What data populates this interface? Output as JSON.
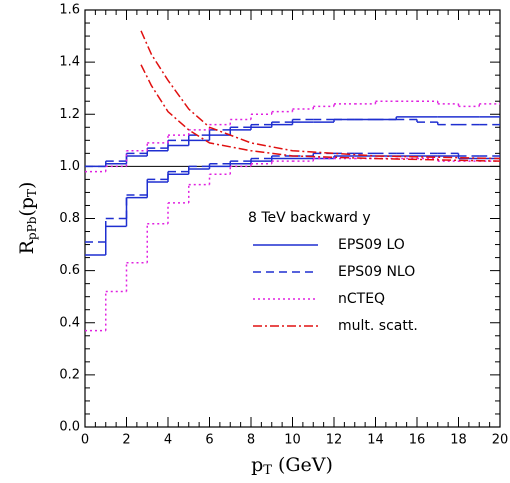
{
  "chart_data": {
    "type": "step",
    "xlabel": {
      "main": "p",
      "sub": "T",
      "rest": " (GeV)"
    },
    "ylabel": {
      "main": "R",
      "sub": "pPb",
      "rest": "(p",
      "sub2": "T",
      "end": ")"
    },
    "legend_title": "8 TeV backward y",
    "xlim": [
      0,
      20
    ],
    "xticks": [
      0,
      2,
      4,
      6,
      8,
      10,
      12,
      14,
      16,
      18,
      20
    ],
    "ylim": [
      0,
      1.6
    ],
    "yticks": [
      {
        "value": 0,
        "label": "0.0"
      },
      {
        "value": 0.2,
        "label": "0.2"
      },
      {
        "value": 0.4,
        "label": "0.4"
      },
      {
        "value": 0.6,
        "label": "0.6"
      },
      {
        "value": 0.8,
        "label": "0.8"
      },
      {
        "value": 1,
        "label": "1.0"
      },
      {
        "value": 1.2,
        "label": "1.2"
      },
      {
        "value": 1.4,
        "label": "1.4"
      },
      {
        "value": 1.6,
        "label": "1.6"
      }
    ],
    "hline": 1,
    "bins": [
      0,
      1,
      2,
      3,
      4,
      5,
      6,
      7,
      8,
      9,
      10,
      11,
      12,
      13,
      14,
      15,
      16,
      17,
      18,
      19,
      20
    ],
    "series": [
      {
        "name": "EPS09 LO",
        "color": "#1f2fd0",
        "dash": "none",
        "lines": [
          [
            1.0,
            1.01,
            1.04,
            1.06,
            1.08,
            1.1,
            1.12,
            1.14,
            1.15,
            1.16,
            1.17,
            1.17,
            1.18,
            1.18,
            1.18,
            1.19,
            1.19,
            1.19,
            1.19,
            1.19
          ],
          [
            0.66,
            0.77,
            0.88,
            0.94,
            0.97,
            0.99,
            1.0,
            1.01,
            1.02,
            1.03,
            1.03,
            1.03,
            1.04,
            1.04,
            1.04,
            1.04,
            1.04,
            1.04,
            1.03,
            1.03
          ]
        ]
      },
      {
        "name": "EPS09 NLO",
        "color": "#1f2fd0",
        "dash": "8 5",
        "lines": [
          [
            1.0,
            1.02,
            1.05,
            1.07,
            1.1,
            1.12,
            1.14,
            1.15,
            1.16,
            1.17,
            1.18,
            1.18,
            1.18,
            1.18,
            1.18,
            1.18,
            1.17,
            1.16,
            1.16,
            1.16
          ],
          [
            0.71,
            0.8,
            0.89,
            0.95,
            0.98,
            1.0,
            1.01,
            1.02,
            1.03,
            1.04,
            1.04,
            1.05,
            1.05,
            1.05,
            1.05,
            1.05,
            1.05,
            1.05,
            1.04,
            1.04
          ]
        ]
      },
      {
        "name": "nCTEQ",
        "color": "#e020e0",
        "dash": "2 3",
        "lines": [
          [
            0.98,
            1.0,
            1.06,
            1.09,
            1.12,
            1.14,
            1.16,
            1.18,
            1.2,
            1.21,
            1.22,
            1.23,
            1.24,
            1.24,
            1.25,
            1.25,
            1.25,
            1.24,
            1.23,
            1.24
          ],
          [
            0.37,
            0.52,
            0.63,
            0.78,
            0.86,
            0.93,
            0.97,
            1.0,
            1.01,
            1.02,
            1.02,
            1.03,
            1.03,
            1.03,
            1.03,
            1.03,
            1.03,
            1.02,
            1.02,
            1.02
          ]
        ]
      },
      {
        "name": "mult. scatt.",
        "color": "#e01010",
        "dash": "9 3 2 3",
        "x": [
          2.7,
          3.2,
          4,
          5,
          6,
          8,
          10,
          14,
          20
        ],
        "lines": [
          [
            1.52,
            1.43,
            1.33,
            1.22,
            1.15,
            1.09,
            1.06,
            1.04,
            1.03
          ],
          [
            1.39,
            1.31,
            1.21,
            1.14,
            1.09,
            1.06,
            1.04,
            1.03,
            1.02
          ]
        ]
      }
    ]
  }
}
